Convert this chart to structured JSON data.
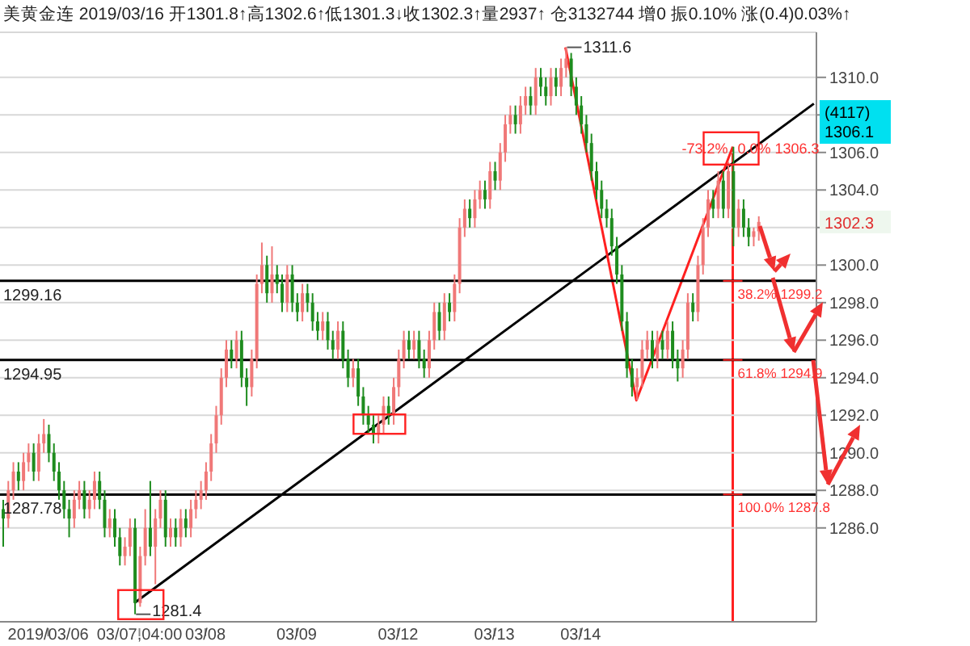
{
  "chart_data": {
    "type": "candlestick",
    "title": "美黄金连 2019/03/16 开1301.8↑高1302.6↑低1301.3↓收1302.3↑量2937↑ 仓3132744 增0 振0.10% 涨(0.4)0.03%↑",
    "categories": [
      null,
      null,
      null,
      null,
      null,
      null,
      null,
      null,
      null,
      "2019/03/06",
      null,
      null,
      null,
      null,
      null,
      null,
      null,
      null,
      null,
      null,
      null,
      null,
      null,
      null,
      null,
      null,
      null,
      "03/07,04:00",
      null,
      null,
      null,
      null,
      null,
      null,
      null,
      null,
      null,
      null,
      null,
      null,
      "03/08",
      null,
      null,
      null,
      null,
      null,
      null,
      null,
      null,
      null,
      null,
      null,
      null,
      null,
      null,
      null,
      null,
      null,
      "03/09",
      null,
      null,
      null,
      null,
      null,
      null,
      null,
      null,
      null,
      null,
      null,
      null,
      null,
      null,
      null,
      null,
      null,
      null,
      null,
      "03/12",
      null,
      null,
      null,
      null,
      null,
      null,
      null,
      null,
      null,
      null,
      null,
      null,
      null,
      null,
      null,
      null,
      null,
      null,
      "03/13",
      null,
      null,
      null,
      null,
      null,
      null,
      null,
      null,
      null,
      null,
      null,
      null,
      null,
      null,
      null,
      null,
      "03/14",
      null,
      null,
      null,
      null,
      null,
      null,
      null,
      null,
      null,
      null,
      null,
      null,
      null,
      null,
      null,
      null,
      null,
      null,
      null,
      null,
      null,
      null,
      null,
      null,
      null,
      null,
      null,
      null,
      null,
      null,
      null,
      null,
      null,
      null,
      null,
      null,
      null,
      null,
      null,
      null,
      null,
      null,
      null,
      null,
      null,
      null
    ],
    "ohlc": [
      [
        1287,
        1287.5,
        1285,
        1286.5
      ],
      [
        1286.5,
        1288.5,
        1286,
        1288
      ],
      [
        1288,
        1289.5,
        1287.5,
        1289
      ],
      [
        1289,
        1289.5,
        1288,
        1288.5
      ],
      [
        1288.5,
        1290,
        1288,
        1289.5
      ],
      [
        1289.5,
        1290.5,
        1289,
        1290
      ],
      [
        1290,
        1290.5,
        1288.5,
        1289
      ],
      [
        1289,
        1291,
        1288.5,
        1290.5
      ],
      [
        1290.5,
        1291.8,
        1290,
        1291
      ],
      [
        1291,
        1291.5,
        1289.5,
        1290
      ],
      [
        1290,
        1290.5,
        1288.5,
        1289
      ],
      [
        1289,
        1289.5,
        1287.5,
        1288
      ],
      [
        1288,
        1288.5,
        1286.5,
        1287
      ],
      [
        1287,
        1287.5,
        1285.5,
        1286.5
      ],
      [
        1286.5,
        1288,
        1286,
        1287.5
      ],
      [
        1287.5,
        1288.5,
        1287,
        1288
      ],
      [
        1288,
        1288.5,
        1286.5,
        1287
      ],
      [
        1287,
        1288,
        1286.5,
        1287.5
      ],
      [
        1287.5,
        1289,
        1287,
        1288.5
      ],
      [
        1288.5,
        1289,
        1287,
        1287.5
      ],
      [
        1287.5,
        1288,
        1285.5,
        1286
      ],
      [
        1286,
        1287,
        1285.5,
        1286.5
      ],
      [
        1286.5,
        1287,
        1285,
        1285.5
      ],
      [
        1285.5,
        1286,
        1284,
        1284.5
      ],
      [
        1284.5,
        1285.5,
        1284,
        1285
      ],
      [
        1285,
        1286.5,
        1284.5,
        1286
      ],
      [
        1286,
        1286.5,
        1281.4,
        1282
      ],
      [
        1282,
        1285,
        1281.8,
        1284.5
      ],
      [
        1284.5,
        1287,
        1284,
        1286
      ],
      [
        1286,
        1288.5,
        1284.5,
        1285
      ],
      [
        1285,
        1287,
        1283,
        1286.5
      ],
      [
        1286.5,
        1288,
        1286,
        1287.5
      ],
      [
        1287.5,
        1288,
        1285,
        1285.5
      ],
      [
        1285.5,
        1286.5,
        1285,
        1286
      ],
      [
        1286,
        1286.5,
        1285,
        1285.5
      ],
      [
        1285.5,
        1287,
        1285,
        1286.5
      ],
      [
        1286.5,
        1287,
        1285.5,
        1286
      ],
      [
        1286,
        1287.5,
        1285.5,
        1287
      ],
      [
        1287,
        1288,
        1286.5,
        1287.5
      ],
      [
        1287.5,
        1288.5,
        1287,
        1288
      ],
      [
        1288,
        1289.5,
        1287.5,
        1289
      ],
      [
        1289,
        1291,
        1288.5,
        1290.5
      ],
      [
        1290.5,
        1292.5,
        1290,
        1292
      ],
      [
        1292,
        1294.5,
        1291.5,
        1294
      ],
      [
        1294,
        1296,
        1293.5,
        1295.5
      ],
      [
        1295.5,
        1296,
        1294.5,
        1295
      ],
      [
        1295,
        1296.5,
        1294.5,
        1296
      ],
      [
        1296,
        1296.5,
        1293.5,
        1294
      ],
      [
        1294,
        1294.5,
        1292.5,
        1293.5
      ],
      [
        1293.5,
        1295.5,
        1293,
        1295
      ],
      [
        1295,
        1299.5,
        1294.5,
        1299
      ],
      [
        1299,
        1301.2,
        1298.5,
        1300
      ],
      [
        1300,
        1300.5,
        1298,
        1298.5
      ],
      [
        1298.5,
        1301,
        1298,
        1299.5
      ],
      [
        1299.5,
        1300,
        1298.5,
        1299
      ],
      [
        1299,
        1299.5,
        1297.5,
        1298
      ],
      [
        1298,
        1300,
        1297.5,
        1299.5
      ],
      [
        1299.5,
        1300,
        1297.5,
        1298
      ],
      [
        1298,
        1298.5,
        1297,
        1297.5
      ],
      [
        1297.5,
        1299,
        1297,
        1298.5
      ],
      [
        1298.5,
        1299,
        1297.5,
        1298
      ],
      [
        1298,
        1298.5,
        1296.5,
        1297
      ],
      [
        1297,
        1297.5,
        1296,
        1296.5
      ],
      [
        1296.5,
        1297.5,
        1296,
        1297
      ],
      [
        1297,
        1297.5,
        1295.5,
        1296
      ],
      [
        1296,
        1296.5,
        1295,
        1295.5
      ],
      [
        1295.5,
        1297,
        1295,
        1296.5
      ],
      [
        1296.5,
        1297,
        1294.5,
        1295
      ],
      [
        1295,
        1295.5,
        1293.5,
        1294
      ],
      [
        1294,
        1295,
        1293.5,
        1294.5
      ],
      [
        1294.5,
        1295,
        1292.5,
        1293
      ],
      [
        1293,
        1293.5,
        1291.5,
        1292
      ],
      [
        1292,
        1292.5,
        1291,
        1291.5
      ],
      [
        1291.5,
        1292,
        1290.5,
        1291
      ],
      [
        1291,
        1292,
        1290.5,
        1291.5
      ],
      [
        1291.5,
        1293,
        1291,
        1292.5
      ],
      [
        1292.5,
        1293,
        1291.5,
        1292
      ],
      [
        1292,
        1294,
        1291.5,
        1293.5
      ],
      [
        1293.5,
        1295.5,
        1293,
        1295
      ],
      [
        1295,
        1296.5,
        1294.5,
        1296
      ],
      [
        1296,
        1296.5,
        1295,
        1295.5
      ],
      [
        1295.5,
        1296.5,
        1295,
        1296
      ],
      [
        1296,
        1296.5,
        1294.5,
        1295
      ],
      [
        1295,
        1295.5,
        1294,
        1294.5
      ],
      [
        1294.5,
        1296.5,
        1294,
        1296
      ],
      [
        1296,
        1298,
        1295.5,
        1297.5
      ],
      [
        1297.5,
        1298,
        1296,
        1296.5
      ],
      [
        1296.5,
        1298.5,
        1296,
        1298
      ],
      [
        1298,
        1298.5,
        1297,
        1297.5
      ],
      [
        1297.5,
        1299.5,
        1297,
        1299
      ],
      [
        1299,
        1302.5,
        1298.5,
        1302
      ],
      [
        1302,
        1303.5,
        1301.5,
        1303
      ],
      [
        1303,
        1303.5,
        1302,
        1302.5
      ],
      [
        1302.5,
        1304,
        1302,
        1303.5
      ],
      [
        1303.5,
        1304.5,
        1303,
        1304
      ],
      [
        1304,
        1304.5,
        1303,
        1303.5
      ],
      [
        1303.5,
        1305.5,
        1303,
        1305
      ],
      [
        1305,
        1305.5,
        1304,
        1304.5
      ],
      [
        1304.5,
        1306.5,
        1304,
        1306
      ],
      [
        1306,
        1308,
        1305.5,
        1307.5
      ],
      [
        1307.5,
        1308.5,
        1307,
        1308
      ],
      [
        1308,
        1308.5,
        1307,
        1307.5
      ],
      [
        1307.5,
        1309,
        1307,
        1308.5
      ],
      [
        1308.5,
        1309.5,
        1308,
        1309
      ],
      [
        1309,
        1309.5,
        1308,
        1308.5
      ],
      [
        1308.5,
        1310.5,
        1308,
        1310
      ],
      [
        1310,
        1310.5,
        1309,
        1309.5
      ],
      [
        1309.5,
        1310,
        1308.5,
        1309
      ],
      [
        1309,
        1310.5,
        1308.5,
        1310
      ],
      [
        1310,
        1310.5,
        1309,
        1309.5
      ],
      [
        1309.5,
        1311,
        1309,
        1310.5
      ],
      [
        1310.5,
        1311.6,
        1310,
        1311
      ],
      [
        1311,
        1311.3,
        1309,
        1309.5
      ],
      [
        1309.5,
        1310,
        1308,
        1308.5
      ],
      [
        1308.5,
        1309,
        1307,
        1307.5
      ],
      [
        1307.5,
        1308,
        1306,
        1306.5
      ],
      [
        1306.5,
        1307,
        1304.5,
        1305
      ],
      [
        1305,
        1305.5,
        1303.5,
        1304
      ],
      [
        1304,
        1304.5,
        1302.5,
        1303
      ],
      [
        1303,
        1303.5,
        1302,
        1302.5
      ],
      [
        1302.5,
        1303,
        1300.5,
        1301
      ],
      [
        1301,
        1301.5,
        1299,
        1299.5
      ],
      [
        1299.5,
        1300,
        1296.5,
        1297
      ],
      [
        1297,
        1297.5,
        1294,
        1294.5
      ],
      [
        1294.5,
        1295,
        1293,
        1293.5
      ],
      [
        1293.5,
        1294.5,
        1292.8,
        1294
      ],
      [
        1294,
        1296,
        1293.5,
        1295.5
      ],
      [
        1295.5,
        1296.5,
        1295,
        1296
      ],
      [
        1296,
        1296.5,
        1294.5,
        1295
      ],
      [
        1295,
        1296.5,
        1294.5,
        1296
      ],
      [
        1296,
        1296.5,
        1295,
        1295.5
      ],
      [
        1295.5,
        1297,
        1295,
        1296.5
      ],
      [
        1296.5,
        1297,
        1294.5,
        1295
      ],
      [
        1295,
        1295.5,
        1293.8,
        1294.5
      ],
      [
        1294.5,
        1296,
        1294,
        1295.5
      ],
      [
        1295.5,
        1298.5,
        1295,
        1298
      ],
      [
        1298,
        1298.5,
        1297,
        1297.5
      ],
      [
        1297.5,
        1300.5,
        1297,
        1300
      ],
      [
        1300,
        1302.5,
        1299.5,
        1302
      ],
      [
        1302,
        1304,
        1301.5,
        1303.5
      ],
      [
        1303.5,
        1304,
        1302.5,
        1303
      ],
      [
        1303,
        1305,
        1302.5,
        1304.5
      ],
      [
        1304.5,
        1305,
        1302.5,
        1303
      ],
      [
        1303,
        1305.5,
        1302.5,
        1305
      ],
      [
        1305,
        1306.3,
        1301,
        1302
      ],
      [
        1302,
        1303.5,
        1301.5,
        1303
      ],
      [
        1303,
        1303.5,
        1301.5,
        1302
      ],
      [
        1302,
        1302.5,
        1301,
        1301.5
      ],
      [
        1301.5,
        1302,
        1301,
        1301.8
      ],
      [
        1301.8,
        1302.6,
        1301.3,
        1302.3
      ],
      null,
      null,
      null,
      null,
      null,
      null,
      null,
      null,
      null,
      null,
      null
    ],
    "colors": [
      "#1e8c1e",
      "#f07878",
      "#f07878",
      "#1e8c1e",
      "#f07878",
      "#f07878",
      "#1e8c1e",
      "#f07878",
      "#f07878",
      "#1e8c1e",
      "#1e8c1e",
      "#1e8c1e",
      "#1e8c1e",
      "#1e8c1e",
      "#f07878",
      "#f07878",
      "#1e8c1e",
      "#f07878",
      "#f07878",
      "#1e8c1e",
      "#1e8c1e",
      "#f07878",
      "#1e8c1e",
      "#1e8c1e",
      "#f07878",
      "#f07878",
      "#1e8c1e",
      "#f07878",
      "#f07878",
      "#1e8c1e",
      "#f07878",
      "#f07878",
      "#1e8c1e",
      "#f07878",
      "#1e8c1e",
      "#f07878",
      "#1e8c1e",
      "#f07878",
      "#f07878",
      "#f07878",
      "#f07878",
      "#f07878",
      "#f07878",
      "#f07878",
      "#f07878",
      "#1e8c1e",
      "#f07878",
      "#1e8c1e",
      "#1e8c1e",
      "#f07878",
      "#f07878",
      "#f07878",
      "#1e8c1e",
      "#f07878",
      "#1e8c1e",
      "#1e8c1e",
      "#f07878",
      "#1e8c1e",
      "#1e8c1e",
      "#f07878",
      "#1e8c1e",
      "#1e8c1e",
      "#1e8c1e",
      "#f07878",
      "#1e8c1e",
      "#1e8c1e",
      "#f07878",
      "#1e8c1e",
      "#1e8c1e",
      "#f07878",
      "#1e8c1e",
      "#1e8c1e",
      "#1e8c1e",
      "#1e8c1e",
      "#f07878",
      "#f07878",
      "#1e8c1e",
      "#f07878",
      "#f07878",
      "#f07878",
      "#1e8c1e",
      "#f07878",
      "#1e8c1e",
      "#1e8c1e",
      "#f07878",
      "#f07878",
      "#1e8c1e",
      "#f07878",
      "#1e8c1e",
      "#f07878",
      "#f07878",
      "#f07878",
      "#1e8c1e",
      "#f07878",
      "#f07878",
      "#1e8c1e",
      "#f07878",
      "#1e8c1e",
      "#f07878",
      "#f07878",
      "#f07878",
      "#1e8c1e",
      "#f07878",
      "#f07878",
      "#1e8c1e",
      "#f07878",
      "#1e8c1e",
      "#1e8c1e",
      "#f07878",
      "#1e8c1e",
      "#f07878",
      "#f07878",
      "#1e8c1e",
      "#1e8c1e",
      "#1e8c1e",
      "#1e8c1e",
      "#1e8c1e",
      "#1e8c1e",
      "#1e8c1e",
      "#1e8c1e",
      "#1e8c1e",
      "#1e8c1e",
      "#1e8c1e",
      "#1e8c1e",
      "#1e8c1e",
      "#f07878",
      "#f07878",
      "#f07878",
      "#1e8c1e",
      "#f07878",
      "#1e8c1e",
      "#f07878",
      "#1e8c1e",
      "#1e8c1e",
      "#f07878",
      "#f07878",
      "#1e8c1e",
      "#f07878",
      "#f07878",
      "#f07878",
      "#1e8c1e",
      "#f07878",
      "#1e8c1e",
      "#f07878",
      "#1e8c1e",
      "#f07878",
      "#1e8c1e",
      "#1e8c1e",
      "#f07878",
      "#f07878",
      null,
      null,
      null,
      null,
      null,
      null,
      null,
      null,
      null,
      null,
      null
    ],
    "series": [
      {
        "type": "line",
        "values": [
          null,
          null,
          null,
          null,
          null,
          null,
          null,
          null,
          null,
          null,
          null,
          null,
          null,
          null,
          null,
          null,
          null,
          null,
          null,
          null,
          null,
          null,
          null,
          null,
          null,
          null,
          1282.0,
          null,
          null,
          null,
          null,
          null,
          null,
          null,
          null,
          null,
          null,
          null,
          null,
          null,
          null,
          null,
          null,
          null,
          null,
          null,
          null,
          null,
          null,
          null,
          null,
          null,
          null,
          null,
          null,
          null,
          null,
          null,
          null,
          null,
          null,
          null,
          null,
          null,
          null,
          null,
          null,
          null,
          null,
          null,
          null,
          null,
          null,
          null,
          null,
          null,
          null,
          null,
          null,
          null,
          null,
          null,
          null,
          null,
          null,
          null,
          null,
          null,
          null,
          null,
          null,
          null,
          null,
          null,
          null,
          null,
          null,
          null,
          null,
          null,
          null,
          null,
          null,
          null,
          null,
          null,
          null,
          null,
          null,
          null,
          null,
          null,
          null,
          null,
          null,
          null,
          null,
          null,
          null,
          null,
          null,
          null,
          null,
          null,
          null,
          null,
          null,
          null,
          null,
          null,
          null,
          null,
          null,
          null,
          null,
          null,
          null,
          null,
          null,
          null,
          null,
          null,
          null,
          null,
          null,
          null,
          null,
          null,
          null,
          null,
          null,
          null,
          null,
          null,
          null,
          null,
          null,
          null,
          null,
          null,
          1308.6
        ],
        "color": "#000000"
      },
      {
        "type": "line",
        "values": [
          null,
          null,
          null,
          null,
          null,
          null,
          null,
          null,
          null,
          null,
          null,
          null,
          null,
          null,
          null,
          null,
          null,
          null,
          null,
          null,
          null,
          null,
          null,
          null,
          null,
          null,
          null,
          null,
          null,
          null,
          null,
          null,
          null,
          null,
          null,
          null,
          null,
          null,
          null,
          null,
          null,
          null,
          null,
          null,
          null,
          null,
          null,
          null,
          null,
          null,
          null,
          null,
          null,
          null,
          null,
          null,
          null,
          null,
          null,
          null,
          null,
          null,
          null,
          null,
          null,
          null,
          null,
          null,
          null,
          null,
          null,
          null,
          null,
          null,
          null,
          null,
          null,
          null,
          null,
          null,
          null,
          null,
          null,
          null,
          null,
          null,
          null,
          null,
          null,
          null,
          null,
          null,
          null,
          null,
          null,
          null,
          null,
          null,
          null,
          null,
          null,
          null,
          null,
          null,
          null,
          null,
          null,
          null,
          null,
          null,
          null,
          1311.6,
          null,
          null,
          null,
          null,
          null,
          null,
          null,
          null,
          null,
          null,
          null,
          null,
          null,
          1292.8,
          null,
          null,
          null,
          null,
          null,
          null,
          null,
          null,
          null,
          null,
          null,
          null,
          null,
          null,
          null,
          null,
          null,
          null,
          1306.3,
          null,
          null,
          null,
          null,
          null,
          null,
          null,
          null,
          null,
          null,
          null,
          null,
          null,
          null,
          null,
          null
        ],
        "color": "#ff2020"
      }
    ],
    "ylim": [
      1281,
      1312.4
    ],
    "yticks": [
      {
        "value": 1286,
        "label": "1286.0"
      },
      {
        "value": 1288,
        "label": "1288.0"
      },
      {
        "value": 1290,
        "label": "1290.0"
      },
      {
        "value": 1292,
        "label": "1292.0"
      },
      {
        "value": 1294,
        "label": "1294.0"
      },
      {
        "value": 1296,
        "label": "1296.0"
      },
      {
        "value": 1298,
        "label": "1298.0"
      },
      {
        "value": 1300,
        "label": "1300.0"
      },
      {
        "value": 1302,
        "label": null
      },
      {
        "value": 1304,
        "label": "1304.0"
      },
      {
        "value": 1306,
        "label": "1306.0"
      },
      {
        "value": 1308,
        "label": null
      },
      {
        "value": 1310,
        "label": "1310.0"
      }
    ],
    "grid": "y",
    "ref_lines": [
      {
        "axis": "y",
        "value": 1299.16,
        "label": "1299.16",
        "color": "#000000"
      },
      {
        "axis": "y",
        "value": 1294.95,
        "label": "1294.95",
        "color": "#000000"
      },
      {
        "axis": "y",
        "value": 1287.78,
        "label": "1287.78",
        "color": "#000000"
      }
    ],
    "annotations": [
      "1311.6",
      "1281.4",
      "-73.2%",
      "0.0% 1306.3",
      "38.2% 1299.2",
      "61.8% 1294.9",
      "100.0% 1287.8",
      "(4117)",
      "1306.1",
      "1302.3"
    ]
  }
}
